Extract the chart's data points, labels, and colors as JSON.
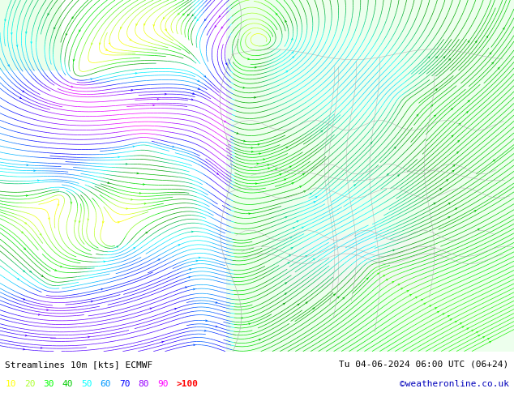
{
  "title_left": "Streamlines 10m [kts] ECMWF",
  "title_right": "Tu 04-06-2024 06:00 UTC (06+24)",
  "watermark": "©weatheronline.co.uk",
  "legend_values": [
    "10",
    "20",
    "30",
    "40",
    "50",
    "60",
    "70",
    "80",
    "90",
    ">100"
  ],
  "legend_colors": [
    "#ffff00",
    "#adff2f",
    "#00ff00",
    "#00cc00",
    "#00ffff",
    "#0099ff",
    "#0000ff",
    "#9900ff",
    "#ff00ff",
    "#ff0000"
  ],
  "background_color": "#ffffff",
  "sea_color": "#f0f0f0",
  "land_color": "#ccffcc",
  "fig_width": 6.34,
  "fig_height": 4.9,
  "dpi": 100,
  "text_color": "#000000",
  "title_fontsize": 8,
  "legend_fontsize": 8,
  "border_color": "#aaaaaa",
  "stream_linewidth": 0.5,
  "stream_density": 3.0,
  "stream_arrowsize": 0.4
}
